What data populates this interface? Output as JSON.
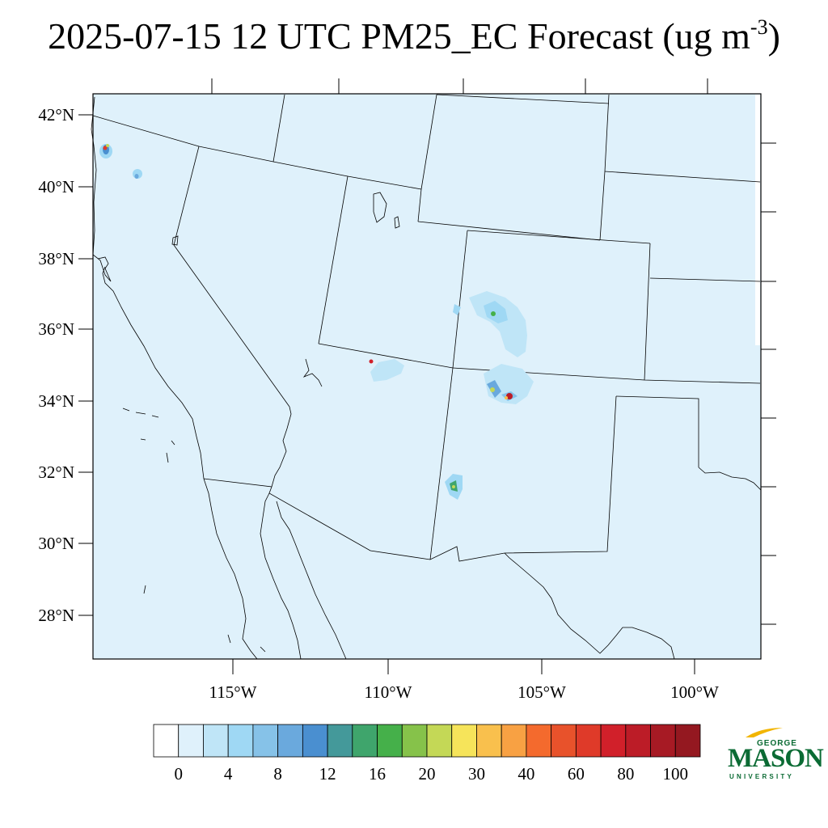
{
  "title": {
    "main": "2025-07-15 12 UTC PM25_EC Forecast (ug m",
    "superscript": "-3",
    "close": ")"
  },
  "map": {
    "background_color": "#dff1fb",
    "lat_labels": [
      "42°N",
      "40°N",
      "38°N",
      "36°N",
      "34°N",
      "32°N",
      "30°N",
      "28°N"
    ],
    "lon_labels": [
      "115°W",
      "110°W",
      "105°W",
      "100°W"
    ]
  },
  "colorbar": {
    "colors": [
      "#ffffff",
      "#dff1fb",
      "#bfe5f7",
      "#9fd8f4",
      "#86c2e8",
      "#6aa9dd",
      "#4a8fd0",
      "#44999a",
      "#3fa56c",
      "#45b04a",
      "#86c24a",
      "#c4d856",
      "#f6e45a",
      "#f9c04d",
      "#f8a143",
      "#f46a2d",
      "#e8522b",
      "#df3a29",
      "#d1202a",
      "#bc1c27",
      "#a71a24",
      "#941820"
    ],
    "labels": [
      "0",
      "4",
      "8",
      "12",
      "16",
      "20",
      "30",
      "40",
      "60",
      "80",
      "100"
    ]
  },
  "logo": {
    "line1": "GEORGE",
    "line2": "MASON",
    "line3": "UNIVERSITY"
  }
}
